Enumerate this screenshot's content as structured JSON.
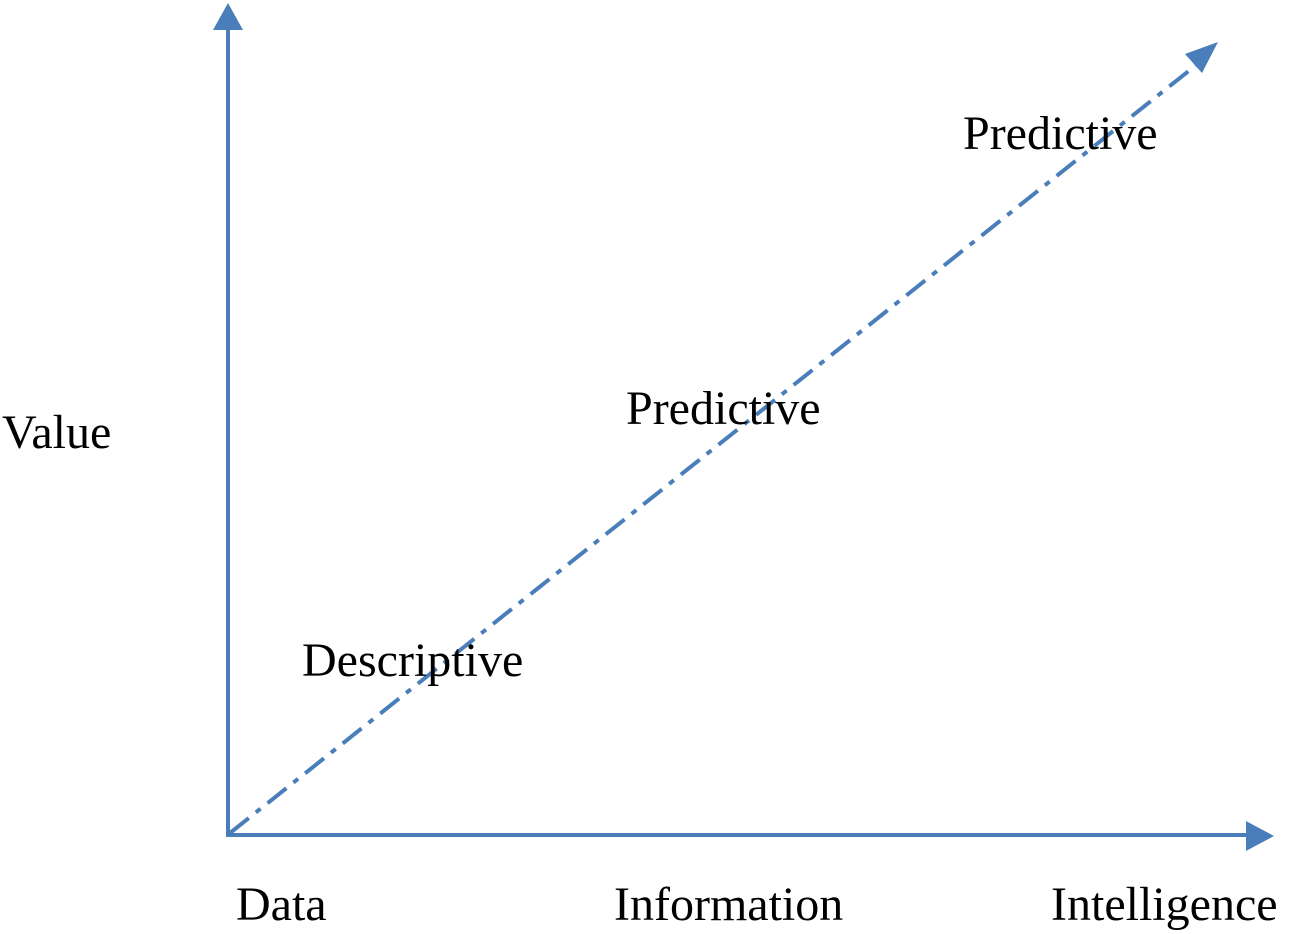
{
  "diagram": {
    "colors": {
      "axis": "#4a7ebb",
      "trend_line": "#4a7ebb",
      "text": "#000000",
      "background": "#ffffff"
    },
    "y_axis": {
      "label": "Value"
    },
    "x_axis": {
      "labels": [
        "Data",
        "Information",
        "Intelligence"
      ]
    },
    "trend_line": {
      "style": "dash-dot",
      "direction": "rising"
    },
    "stages": [
      {
        "label": "Descriptive"
      },
      {
        "label": "Predictive"
      },
      {
        "label": "Predictive"
      }
    ]
  }
}
